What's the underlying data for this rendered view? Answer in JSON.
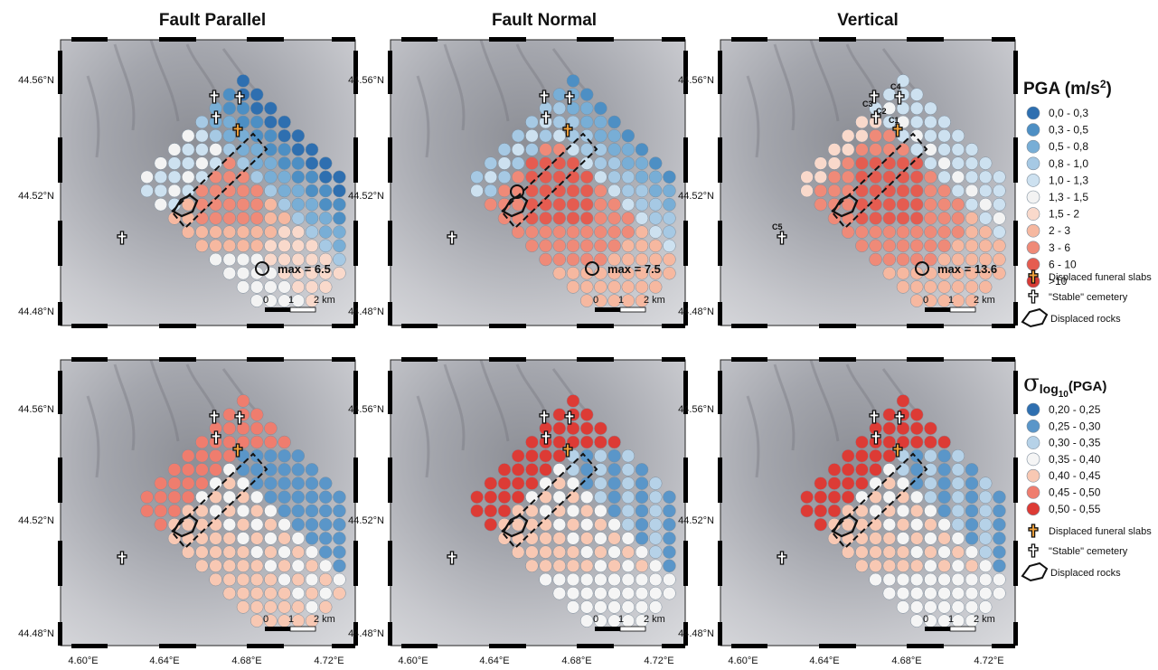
{
  "columns": [
    {
      "title": "Fault Parallel",
      "max_label": "max = 6.5"
    },
    {
      "title": "Fault Normal",
      "max_label": "max = 7.5"
    },
    {
      "title": "Vertical",
      "max_label": "max = 13.6"
    }
  ],
  "axes": {
    "lat_labels": [
      "44.56°N",
      "44.52°N",
      "44.48°N"
    ],
    "lon_labels": [
      "4.60°E",
      "4.64°E",
      "4.68°E",
      "4.72°E"
    ]
  },
  "scalebar": {
    "labels": [
      "0",
      "1",
      "2 km"
    ]
  },
  "site_labels": [
    "C1",
    "C2",
    "C3",
    "C4",
    "C5"
  ],
  "legend_pga": {
    "title": "PGA (m/s",
    "title_sup": "2",
    "title_close": ")",
    "classes": [
      {
        "label": "0,0 - 0,3",
        "color": "#2e6fb0"
      },
      {
        "label": "0,3 - 0,5",
        "color": "#4d8fc4"
      },
      {
        "label": "0,5 - 0,8",
        "color": "#78aed6"
      },
      {
        "label": "0,8 - 1,0",
        "color": "#a6c9e4"
      },
      {
        "label": "1,0 - 1,3",
        "color": "#cde1f0"
      },
      {
        "label": "1,3 - 1,5",
        "color": "#f3f3f3"
      },
      {
        "label": "1,5 - 2",
        "color": "#f9d9cb"
      },
      {
        "label": "2 - 3",
        "color": "#f6b8a0"
      },
      {
        "label": "3 - 6",
        "color": "#ef8a78"
      },
      {
        "label": "6 - 10",
        "color": "#e55c50"
      },
      {
        "label": ">10",
        "color": "#d63a34"
      }
    ]
  },
  "legend_sigma": {
    "title_sigma": "σ",
    "title_sub": "log",
    "title_sub2": "10",
    "title_rest": "(PGA)",
    "classes": [
      {
        "label": "0,20 - 0,25",
        "color": "#2e6fb0"
      },
      {
        "label": "0,25 - 0,30",
        "color": "#5a96c9"
      },
      {
        "label": "0,30 - 0,35",
        "color": "#b6d2e8"
      },
      {
        "label": "0,35 - 0,40",
        "color": "#f5f5f5"
      },
      {
        "label": "0,40 - 0,45",
        "color": "#f8c8b3"
      },
      {
        "label": "0,45 - 0,50",
        "color": "#ef7d6e"
      },
      {
        "label": "0,50 - 0,55",
        "color": "#dd3b35"
      }
    ]
  },
  "legend_symbols": {
    "funeral": "Displaced funeral slabs",
    "cemetery": "\"Stable\" cemetery",
    "rocks": "Displaced rocks"
  }
}
